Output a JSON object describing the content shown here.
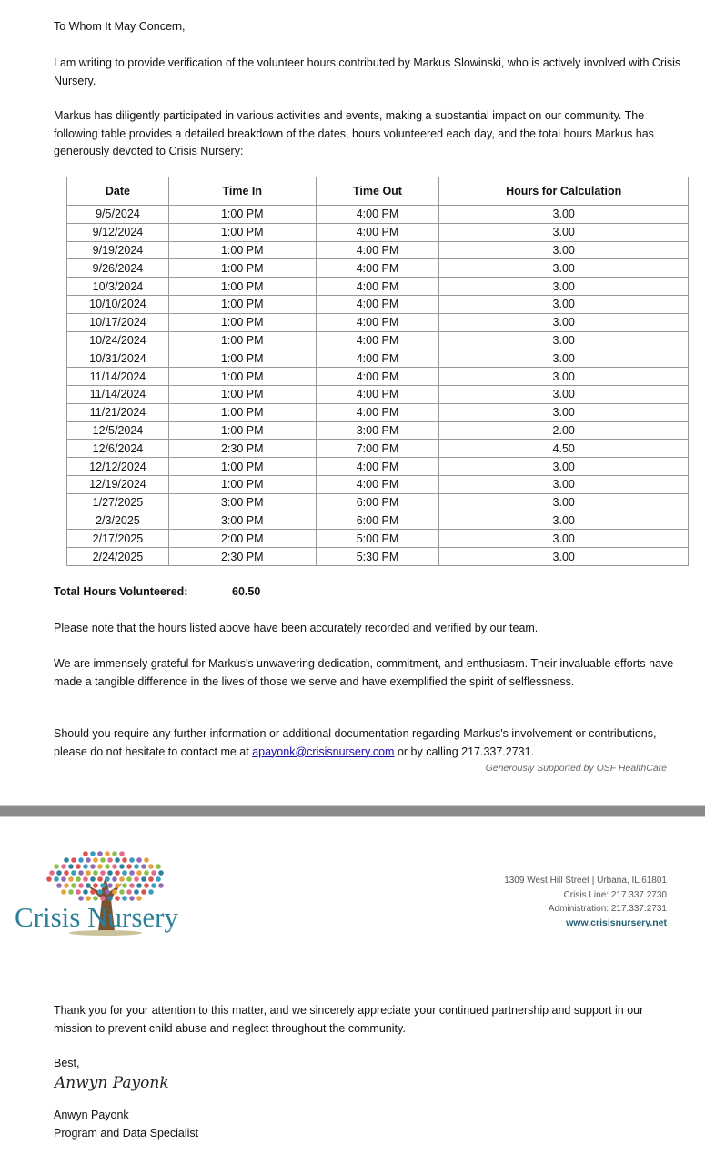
{
  "salutation": "To Whom It May Concern,",
  "para1": "I am writing to provide verification of the volunteer hours contributed by Markus Slowinski, who is actively involved with Crisis Nursery.",
  "para2": "Markus has diligently participated in various activities and events, making a substantial impact on our community. The following table provides a detailed breakdown of the dates, hours volunteered each day, and the total hours Markus has generously devoted to Crisis Nursery:",
  "table": {
    "headers": [
      "Date",
      "Time In",
      "Time Out",
      "Hours for Calculation"
    ],
    "rows": [
      [
        "9/5/2024",
        "1:00 PM",
        "4:00 PM",
        "3.00"
      ],
      [
        "9/12/2024",
        "1:00 PM",
        "4:00 PM",
        "3.00"
      ],
      [
        "9/19/2024",
        "1:00 PM",
        "4:00 PM",
        "3.00"
      ],
      [
        "9/26/2024",
        "1:00 PM",
        "4:00 PM",
        "3.00"
      ],
      [
        "10/3/2024",
        "1:00 PM",
        "4:00 PM",
        "3.00"
      ],
      [
        "10/10/2024",
        "1:00 PM",
        "4:00 PM",
        "3.00"
      ],
      [
        "10/17/2024",
        "1:00 PM",
        "4:00 PM",
        "3.00"
      ],
      [
        "10/24/2024",
        "1:00 PM",
        "4:00 PM",
        "3.00"
      ],
      [
        "10/31/2024",
        "1:00 PM",
        "4:00 PM",
        "3.00"
      ],
      [
        "11/14/2024",
        "1:00 PM",
        "4:00 PM",
        "3.00"
      ],
      [
        "11/14/2024",
        "1:00 PM",
        "4:00 PM",
        "3.00"
      ],
      [
        "11/21/2024",
        "1:00 PM",
        "4:00 PM",
        "3.00"
      ],
      [
        "12/5/2024",
        "1:00 PM",
        "3:00 PM",
        "2.00"
      ],
      [
        "12/6/2024",
        "2:30 PM",
        "7:00 PM",
        "4.50"
      ],
      [
        "12/12/2024",
        "1:00 PM",
        "4:00 PM",
        "3.00"
      ],
      [
        "12/19/2024",
        "1:00 PM",
        "4:00 PM",
        "3.00"
      ],
      [
        "1/27/2025",
        "3:00 PM",
        "6:00 PM",
        "3.00"
      ],
      [
        "2/3/2025",
        "3:00 PM",
        "6:00 PM",
        "3.00"
      ],
      [
        "2/17/2025",
        "2:00 PM",
        "5:00 PM",
        "3.00"
      ],
      [
        "2/24/2025",
        "2:30 PM",
        "5:30 PM",
        "3.00"
      ]
    ]
  },
  "total_label": "Total Hours Volunteered:",
  "total_value": "60.50",
  "para3": "Please note that the hours listed above have been accurately recorded and verified by our team.",
  "para4": "We are immensely grateful for Markus's unwavering dedication, commitment, and enthusiasm. Their invaluable efforts have made a tangible difference in the lives of those we serve and have exemplified the spirit of selflessness.",
  "para5_pre": "Should you require any further information or additional documentation regarding Markus's involvement or contributions, please do not hesitate to contact me at ",
  "email": "apayonk@crisisnursery.com",
  "para5_post": " or by calling 217.337.2731.",
  "sponsor": "Generously Supported by OSF HealthCare",
  "logo_text": "Crisis Nursery",
  "address": {
    "street": "1309 West Hill Street | Urbana, IL  61801",
    "crisis_line": "Crisis Line: 217.337.2730",
    "admin": "Administration: 217.337.2731",
    "website": "www.crisisnursery.net"
  },
  "para6": "Thank you for your attention to this matter, and we sincerely appreciate your continued partnership and support in our mission to prevent child abuse and neglect throughout the community.",
  "closing": "Best,",
  "signature": "Anwyn Payonk",
  "signer_name": "Anwyn Payonk",
  "signer_title": "Program and Data Specialist"
}
